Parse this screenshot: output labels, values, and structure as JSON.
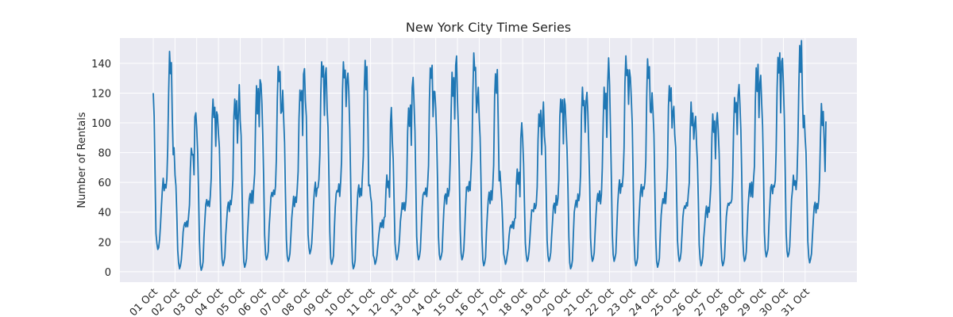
{
  "chart_data": {
    "type": "line",
    "title": "New York City Time Series",
    "xlabel": "",
    "ylabel": "Number of Rentals",
    "x_tick_labels": [
      "01 Oct",
      "02 Oct",
      "03 Oct",
      "04 Oct",
      "05 Oct",
      "06 Oct",
      "07 Oct",
      "08 Oct",
      "09 Oct",
      "10 Oct",
      "11 Oct",
      "12 Oct",
      "13 Oct",
      "14 Oct",
      "15 Oct",
      "16 Oct",
      "17 Oct",
      "18 Oct",
      "19 Oct",
      "20 Oct",
      "21 Oct",
      "22 Oct",
      "23 Oct",
      "24 Oct",
      "25 Oct",
      "26 Oct",
      "27 Oct",
      "28 Oct",
      "29 Oct",
      "30 Oct",
      "31 Oct"
    ],
    "y_ticks": [
      0,
      20,
      40,
      60,
      80,
      100,
      120,
      140
    ],
    "ylim": [
      -7,
      157
    ],
    "x_unit": "hour",
    "grid": true,
    "style": {
      "background": "#eaeaf2",
      "grid_color": "#ffffff",
      "line_color": "#1f77b4"
    },
    "daily_peaks": [
      {
        "day": "01 Oct",
        "peak": 148,
        "min": 15
      },
      {
        "day": "02 Oct",
        "peak": 83,
        "min": 2
      },
      {
        "day": "03 Oct",
        "peak": 116,
        "min": 1
      },
      {
        "day": "04 Oct",
        "peak": 116,
        "min": 4
      },
      {
        "day": "05 Oct",
        "peak": 125,
        "min": 3
      },
      {
        "day": "06 Oct",
        "peak": 138,
        "min": 8
      },
      {
        "day": "07 Oct",
        "peak": 122,
        "min": 7
      },
      {
        "day": "08 Oct",
        "peak": 141,
        "min": 12
      },
      {
        "day": "09 Oct",
        "peak": 141,
        "min": 5
      },
      {
        "day": "10 Oct",
        "peak": 142,
        "min": 2
      },
      {
        "day": "11 Oct",
        "peak": 65,
        "min": 5
      },
      {
        "day": "12 Oct",
        "peak": 110,
        "min": 8
      },
      {
        "day": "13 Oct",
        "peak": 137,
        "min": 8
      },
      {
        "day": "14 Oct",
        "peak": 134,
        "min": 8
      },
      {
        "day": "15 Oct",
        "peak": 147,
        "min": 8
      },
      {
        "day": "16 Oct",
        "peak": 133,
        "min": 4
      },
      {
        "day": "17 Oct",
        "peak": 69,
        "min": 5
      },
      {
        "day": "18 Oct",
        "peak": 106,
        "min": 7
      },
      {
        "day": "19 Oct",
        "peak": 116,
        "min": 7
      },
      {
        "day": "20 Oct",
        "peak": 124,
        "min": 2
      },
      {
        "day": "21 Oct",
        "peak": 124,
        "min": 7
      },
      {
        "day": "22 Oct",
        "peak": 145,
        "min": 7
      },
      {
        "day": "23 Oct",
        "peak": 143,
        "min": 4
      },
      {
        "day": "24 Oct",
        "peak": 125,
        "min": 3
      },
      {
        "day": "25 Oct",
        "peak": 114,
        "min": 7
      },
      {
        "day": "26 Oct",
        "peak": 106,
        "min": 4
      },
      {
        "day": "27 Oct",
        "peak": 117,
        "min": 4
      },
      {
        "day": "28 Oct",
        "peak": 137,
        "min": 7
      },
      {
        "day": "29 Oct",
        "peak": 144,
        "min": 10
      },
      {
        "day": "30 Oct",
        "peak": 152,
        "min": 10
      },
      {
        "day": "31 Oct",
        "peak": 113,
        "min": 6
      }
    ],
    "day_end_value": 101
  }
}
